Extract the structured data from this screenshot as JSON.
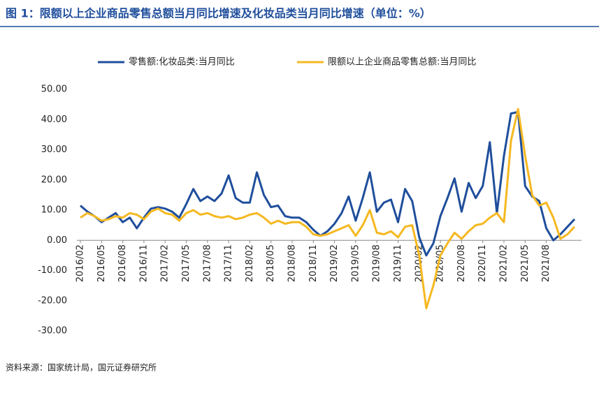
{
  "chart_data": {
    "type": "line",
    "title": "图 1：限额以上企业商品零售总额当月同比增速及化妆品类当月同比增速（单位：%）",
    "source": "资料来源：国家统计局，国元证券研究所",
    "categories": [
      "2016/02",
      null,
      null,
      "2016/05",
      null,
      null,
      "2016/08",
      null,
      null,
      "2016/11",
      null,
      null,
      "2017/02",
      null,
      null,
      "2017/05",
      null,
      null,
      "2017/08",
      null,
      null,
      "2017/11",
      null,
      null,
      "2018/02",
      null,
      null,
      "2018/05",
      null,
      null,
      "2018/08",
      null,
      null,
      "2018/11",
      null,
      null,
      "2019/02",
      null,
      null,
      "2019/05",
      null,
      null,
      "2019/08",
      null,
      null,
      "2019/11",
      null,
      null,
      "2020/02",
      null,
      null,
      "2020/05",
      null,
      null,
      "2020/08",
      null,
      null,
      "2020/11",
      null,
      null,
      "2021/02",
      null,
      null,
      "2021/05",
      null,
      null,
      "2021/08",
      null,
      null,
      null,
      null
    ],
    "series": [
      {
        "name": "零售额:化妆品类:当月同比",
        "color": "#1f4e9c",
        "values": [
          11.5,
          9.5,
          8,
          6,
          7.5,
          9,
          6,
          7.5,
          4,
          7.5,
          10.5,
          11,
          10.5,
          9.5,
          7.5,
          12,
          17,
          13,
          14.5,
          13,
          15.5,
          21.5,
          14,
          12.5,
          12.5,
          22.5,
          15,
          11,
          11.5,
          8,
          7.5,
          7.5,
          6,
          3.5,
          1.5,
          3,
          5.5,
          9,
          14.5,
          6.5,
          14,
          22.5,
          9.5,
          12.5,
          13.5,
          6,
          17,
          13,
          1,
          -5,
          -1,
          8,
          14,
          20.5,
          9.5,
          19,
          14,
          18,
          32.5,
          9,
          28,
          42,
          42.5,
          18,
          14.5,
          13,
          4,
          0,
          2,
          4.5,
          7
        ]
      },
      {
        "name": "限额以上企业商品零售总额:当月同比",
        "color": "#f5b820",
        "values": [
          7.5,
          9,
          8,
          6.5,
          7,
          8,
          7.5,
          9,
          8.5,
          7,
          9.5,
          10.5,
          9,
          8.5,
          6.5,
          9,
          10,
          8.5,
          9,
          8,
          7.5,
          8,
          7,
          7.5,
          8.5,
          9,
          7.5,
          5.5,
          6.5,
          5.5,
          6,
          6,
          4.5,
          2,
          1.5,
          2,
          3,
          4,
          5,
          1.5,
          5,
          10,
          2.5,
          2,
          3,
          1,
          4.5,
          5,
          -5,
          -22.5,
          -15,
          -5,
          -1,
          2.5,
          0.5,
          3,
          5,
          5.5,
          7.5,
          9,
          6,
          33,
          43.5,
          28,
          15,
          11.5,
          12.5,
          7.5,
          0.5,
          2,
          4.5
        ]
      }
    ],
    "ylim": [
      -30,
      50
    ],
    "yticks": [
      {
        "value": -30,
        "label": "-30.00"
      },
      {
        "value": -20,
        "label": "-20.00"
      },
      {
        "value": -10,
        "label": "-10.00"
      },
      {
        "value": 0,
        "label": "0.00"
      },
      {
        "value": 10,
        "label": "10.00"
      },
      {
        "value": 20,
        "label": "20.00"
      },
      {
        "value": 30,
        "label": "30.00"
      },
      {
        "value": 40,
        "label": "40.00"
      },
      {
        "value": 50,
        "label": "50.00"
      }
    ],
    "grid": false,
    "legend": "top"
  }
}
